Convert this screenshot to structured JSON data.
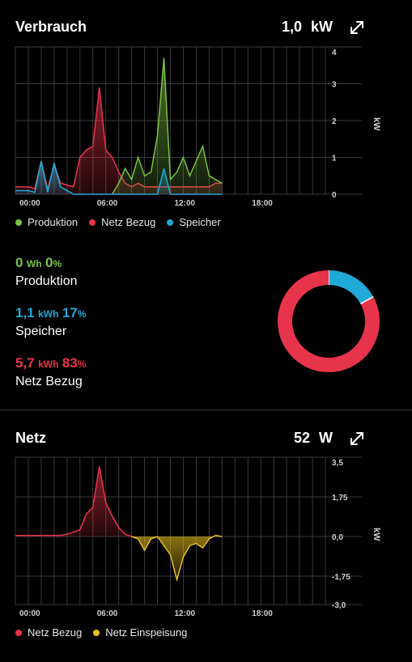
{
  "colors": {
    "production": "#7ac143",
    "grid_import": "#e8344a",
    "storage": "#1fa9d6",
    "grid_export": "#e8c21a",
    "gridline": "#3a3a3a",
    "axis_text": "#cfcfcf"
  },
  "consumption": {
    "title": "Verbrauch",
    "value": "1,0",
    "unit": "kW",
    "expand_icon": "expand-arrows-icon",
    "legend": [
      "Produktion",
      "Netz Bezug",
      "Speicher"
    ],
    "stats": [
      {
        "num": "0",
        "unit": "Wh",
        "pct": "0",
        "pct_sym": "%",
        "label": "Produktion",
        "color_key": "production"
      },
      {
        "num": "1,1",
        "unit": "kWh",
        "pct": "17",
        "pct_sym": "%",
        "label": "Speicher",
        "color_key": "storage"
      },
      {
        "num": "5,7",
        "unit": "kWh",
        "pct": "83",
        "pct_sym": "%",
        "label": "Netz Bezug",
        "color_key": "grid_import"
      }
    ]
  },
  "grid": {
    "title": "Netz",
    "value": "52",
    "unit": "W",
    "expand_icon": "expand-arrows-icon",
    "legend": [
      "Netz Bezug",
      "Netz Einspeisung"
    ]
  },
  "chart_data": [
    {
      "type": "area",
      "ylabel": "kW",
      "ylim": [
        0,
        4
      ],
      "yticks": [
        "4",
        "3",
        "2",
        "1",
        "0"
      ],
      "xlim": [
        0,
        24
      ],
      "xticks": [
        {
          "x": 0,
          "label": "00:00"
        },
        {
          "x": 6,
          "label": "06:00"
        },
        {
          "x": 12,
          "label": "12:00"
        },
        {
          "x": 18,
          "label": "18:00"
        }
      ],
      "series": [
        {
          "name": "Netz Bezug",
          "color_key": "grid_import",
          "x": [
            0,
            1,
            1.5,
            2,
            2.5,
            3,
            3.5,
            4,
            4.5,
            5,
            5.5,
            6,
            6.5,
            7,
            7.5,
            8,
            8.5,
            9,
            9.5,
            10,
            10.5,
            11,
            11.5,
            12,
            12.5,
            13,
            13.5,
            14,
            14.5,
            15,
            15.5,
            16
          ],
          "y": [
            0.2,
            0.2,
            0.15,
            0.9,
            0.15,
            0.8,
            0.3,
            0.25,
            0.2,
            1.0,
            1.2,
            1.3,
            2.9,
            1.2,
            1.0,
            0.6,
            0.3,
            0.2,
            0.3,
            0.2,
            0.2,
            0.2,
            0.2,
            0.2,
            0.2,
            0.2,
            0.2,
            0.2,
            0.2,
            0.2,
            0.3,
            0.3
          ]
        },
        {
          "name": "Produktion",
          "color_key": "production",
          "x": [
            7.5,
            8,
            8.5,
            9,
            9.5,
            10,
            10.5,
            11,
            11.5,
            12,
            12.5,
            13,
            13.5,
            14,
            14.5,
            15,
            15.5,
            16
          ],
          "y": [
            0,
            0.3,
            0.7,
            0.4,
            1.0,
            0.5,
            0.6,
            1.6,
            3.7,
            0.4,
            0.6,
            1.0,
            0.5,
            0.9,
            1.3,
            0.5,
            0.4,
            0.3
          ]
        },
        {
          "name": "Speicher",
          "color_key": "storage",
          "x": [
            0,
            1,
            1.5,
            2,
            2.5,
            3,
            3.5,
            4,
            4.5,
            11,
            11.5,
            12,
            12.5,
            16
          ],
          "y": [
            0.1,
            0.1,
            0.05,
            0.9,
            0.05,
            0.85,
            0.2,
            0.1,
            0,
            0,
            0.7,
            0,
            0,
            0
          ]
        }
      ]
    },
    {
      "type": "pie",
      "categories": [
        "Speicher",
        "Netz Bezug",
        "Produktion"
      ],
      "values": [
        17,
        83,
        0
      ],
      "color_keys": [
        "storage",
        "grid_import",
        "production"
      ]
    },
    {
      "type": "area",
      "ylabel": "kW",
      "ylim": [
        -3.0,
        3.5
      ],
      "yticks": [
        "3,5",
        "1,75",
        "0,0",
        "-1,75",
        "-3,0"
      ],
      "ytick_values": [
        3.5,
        1.75,
        0,
        -1.75,
        -3.0
      ],
      "xlim": [
        0,
        24
      ],
      "xticks": [
        {
          "x": 0,
          "label": "00:00"
        },
        {
          "x": 6,
          "label": "06:00"
        },
        {
          "x": 12,
          "label": "12:00"
        },
        {
          "x": 18,
          "label": "18:00"
        }
      ],
      "series": [
        {
          "name": "Netz Bezug",
          "color_key": "grid_import",
          "x": [
            0,
            1,
            2,
            3,
            3.5,
            4,
            4.5,
            5,
            5.5,
            6,
            6.5,
            7,
            7.5,
            8,
            8.5,
            9
          ],
          "y": [
            0.05,
            0.05,
            0.05,
            0.05,
            0.05,
            0.1,
            0.2,
            0.3,
            1.0,
            1.3,
            3.1,
            1.5,
            0.9,
            0.4,
            0.1,
            0
          ]
        },
        {
          "name": "Netz Einspeisung",
          "color_key": "grid_export",
          "x": [
            9,
            9.5,
            10,
            10.5,
            11,
            11.5,
            12,
            12.5,
            13,
            13.5,
            14,
            14.5,
            15,
            15.5,
            16
          ],
          "y": [
            0,
            -0.1,
            -0.6,
            -0.1,
            0,
            -0.4,
            -0.8,
            -1.9,
            -0.9,
            -0.4,
            -0.3,
            -0.5,
            -0.1,
            0.05,
            0
          ]
        }
      ]
    }
  ]
}
